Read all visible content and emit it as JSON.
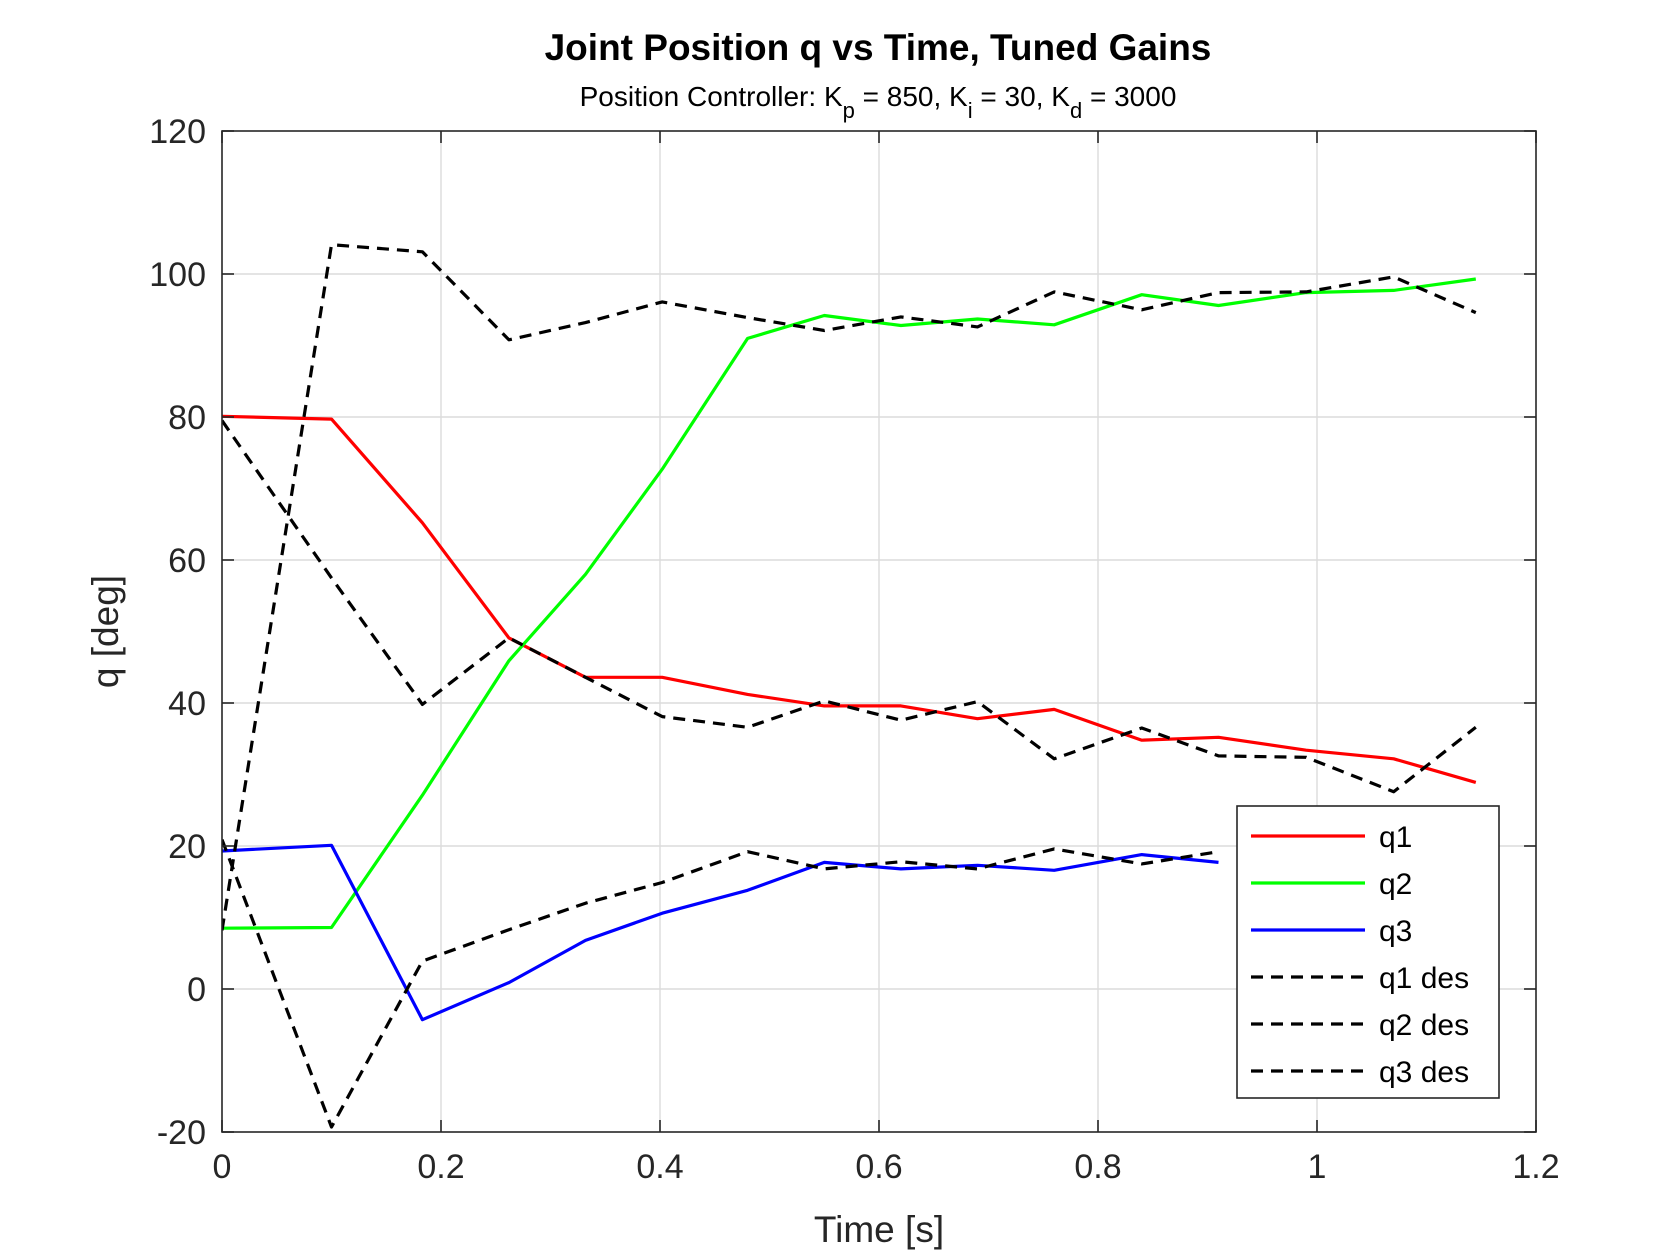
{
  "chart_data": {
    "type": "line",
    "title": "Joint Position q vs Time, Tuned Gains",
    "subtitle": {
      "parts": [
        {
          "text": "Position Controller: K",
          "sub": false
        },
        {
          "text": "p",
          "sub": true
        },
        {
          "text": " = 850, K",
          "sub": false
        },
        {
          "text": "i",
          "sub": true
        },
        {
          "text": " = 30, K",
          "sub": false
        },
        {
          "text": "d",
          "sub": true
        },
        {
          "text": " = 3000",
          "sub": false
        }
      ]
    },
    "xlabel": "Time [s]",
    "ylabel": "q [deg]",
    "xlim": [
      0,
      1.2
    ],
    "ylim": [
      -20,
      120
    ],
    "xticks": [
      0,
      0.2,
      0.4,
      0.6,
      0.8,
      1,
      1.2
    ],
    "xtick_labels": [
      "0",
      "0.2",
      "0.4",
      "0.6",
      "0.8",
      "1",
      "1.2"
    ],
    "yticks": [
      -20,
      0,
      20,
      40,
      60,
      80,
      100,
      120
    ],
    "ytick_labels": [
      "-20",
      "0",
      "20",
      "40",
      "60",
      "80",
      "100",
      "120"
    ],
    "grid": true,
    "legend_position": "bottom-right",
    "series": [
      {
        "name": "q1",
        "color": "#ff0000",
        "style": "solid",
        "x": [
          0,
          0.1,
          0.183,
          0.262,
          0.332,
          0.402,
          0.48,
          0.55,
          0.62,
          0.69,
          0.76,
          0.84,
          0.91,
          0.99,
          1.07,
          1.145
        ],
        "y": [
          80.1,
          79.7,
          65.2,
          49.1,
          43.6,
          43.6,
          41.2,
          39.6,
          39.6,
          37.8,
          39.1,
          34.8,
          35.2,
          33.4,
          32.2,
          28.9
        ]
      },
      {
        "name": "q2",
        "color": "#00ff00",
        "style": "solid",
        "x": [
          0,
          0.1,
          0.183,
          0.262,
          0.332,
          0.402,
          0.48,
          0.55,
          0.62,
          0.69,
          0.76,
          0.84,
          0.91,
          0.99,
          1.07,
          1.145
        ],
        "y": [
          8.5,
          8.6,
          27.1,
          45.9,
          58.0,
          72.7,
          91.0,
          94.2,
          92.8,
          93.7,
          92.9,
          97.1,
          95.6,
          97.4,
          97.7,
          99.3
        ]
      },
      {
        "name": "q3",
        "color": "#0000ff",
        "style": "solid",
        "x": [
          0,
          0.1,
          0.183,
          0.262,
          0.332,
          0.402,
          0.48,
          0.55,
          0.62,
          0.69,
          0.76,
          0.84,
          0.91
        ],
        "y": [
          19.3,
          20.1,
          -4.3,
          0.9,
          6.8,
          10.6,
          13.8,
          17.7,
          16.8,
          17.3,
          16.6,
          18.8,
          17.7
        ]
      },
      {
        "name": "q1 des",
        "color": "#000000",
        "style": "dashed",
        "x": [
          0,
          0.1,
          0.183,
          0.262,
          0.332,
          0.402,
          0.48,
          0.55,
          0.62,
          0.69,
          0.76,
          0.84,
          0.91,
          0.99,
          1.07,
          1.145
        ],
        "y": [
          79.5,
          57.5,
          39.8,
          49.1,
          43.6,
          38.1,
          36.6,
          40.3,
          37.6,
          40.2,
          32.2,
          36.5,
          32.6,
          32.4,
          27.6,
          36.6
        ]
      },
      {
        "name": "q2 des",
        "color": "#000000",
        "style": "dashed",
        "x": [
          0,
          0.1,
          0.183,
          0.262,
          0.332,
          0.402,
          0.48,
          0.55,
          0.62,
          0.69,
          0.76,
          0.84,
          0.91,
          0.99,
          1.07,
          1.145
        ],
        "y": [
          8.2,
          104.1,
          103.1,
          90.8,
          93.2,
          96.1,
          93.9,
          92.1,
          94.0,
          92.6,
          97.5,
          95.0,
          97.4,
          97.5,
          99.6,
          94.6
        ]
      },
      {
        "name": "q3 des",
        "color": "#000000",
        "style": "dashed",
        "x": [
          0,
          0.1,
          0.183,
          0.262,
          0.332,
          0.402,
          0.48,
          0.55,
          0.62,
          0.69,
          0.76,
          0.84,
          0.91
        ],
        "y": [
          20.9,
          -19.3,
          3.9,
          8.3,
          12.0,
          14.9,
          19.2,
          16.8,
          17.8,
          16.8,
          19.6,
          17.5,
          19.2
        ]
      }
    ]
  }
}
